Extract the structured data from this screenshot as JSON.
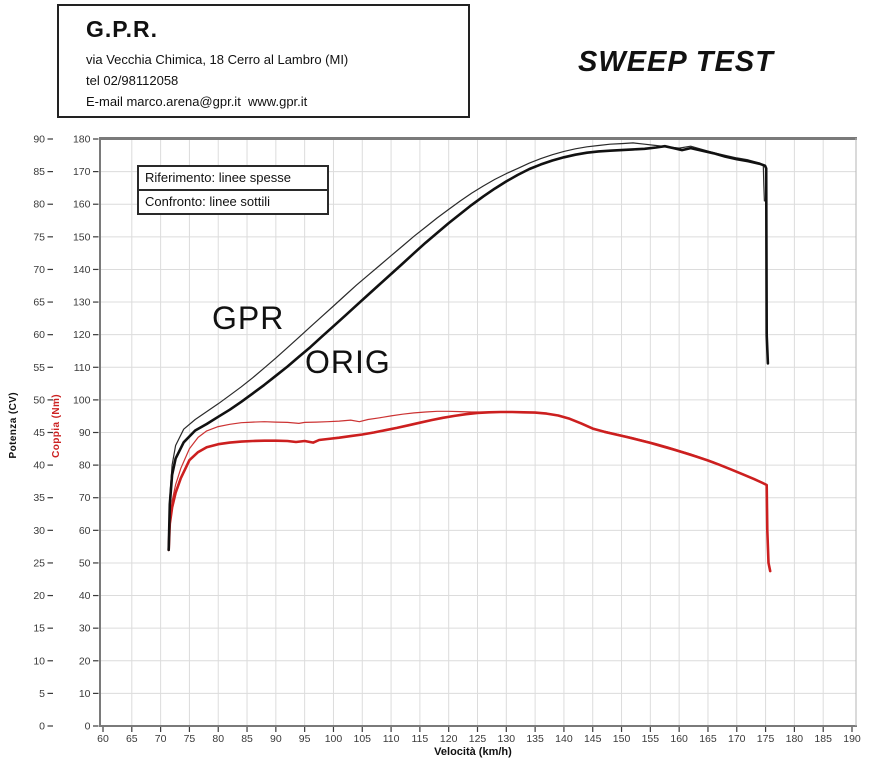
{
  "header": {
    "company": "G.P.R.",
    "address": "via Vecchia Chimica, 18 Cerro al Lambro (MI)",
    "phone": "tel 02/98112058",
    "email_line": "E-mail marco.arena@gpr.it  www.gpr.it"
  },
  "title": "SWEEP TEST",
  "legend": {
    "row1": "Riferimento: linee spesse",
    "row2": "Confronto: linee sottili"
  },
  "annotations": {
    "gpr": "GPR",
    "orig": "ORIG"
  },
  "axes": {
    "x": {
      "label": "Velocità (km/h)",
      "min": 60,
      "max": 190,
      "step": 5
    },
    "y_power": {
      "label": "Potenza (CV)",
      "min": 0,
      "max": 90,
      "step": 5,
      "color": "#1a1a1a"
    },
    "y_torque": {
      "label": "Coppia (Nm)",
      "min": 0,
      "max": 180,
      "step": 10,
      "color": "#cc2222"
    }
  },
  "chart_data": {
    "type": "line",
    "title": "SWEEP TEST",
    "xlabel": "Velocità (km/h)",
    "x_range": [
      60,
      190
    ],
    "power_axis": {
      "label": "Potenza (CV)",
      "range": [
        0,
        90
      ]
    },
    "torque_axis": {
      "label": "Coppia (Nm)",
      "range": [
        0,
        180
      ]
    },
    "grid": true,
    "grid_color": "#dcdcdc",
    "frame_color": "#7a7a7a",
    "tick_color": "#3a3a3a",
    "series": [
      {
        "name": "torque_gpr",
        "legend": "Confronto (linee sottili)",
        "axis": "torque",
        "style": "thin",
        "color": "#cc3333",
        "points": [
          [
            71.4,
            54.5
          ],
          [
            71.6,
            63
          ],
          [
            72,
            69
          ],
          [
            72.6,
            74
          ],
          [
            73.5,
            79
          ],
          [
            75,
            85
          ],
          [
            76.5,
            88.5
          ],
          [
            78,
            90.5
          ],
          [
            80,
            91.8
          ],
          [
            82,
            92.5
          ],
          [
            84,
            93
          ],
          [
            86,
            93.2
          ],
          [
            88,
            93.3
          ],
          [
            90,
            93.2
          ],
          [
            92,
            93.1
          ],
          [
            94,
            92.8
          ],
          [
            95,
            93.1
          ],
          [
            97,
            93.2
          ],
          [
            99,
            93.3
          ],
          [
            101,
            93.5
          ],
          [
            103,
            93.8
          ],
          [
            104.5,
            93.3
          ],
          [
            106,
            94
          ],
          [
            108,
            94.5
          ],
          [
            110,
            95.1
          ],
          [
            112,
            95.6
          ],
          [
            114,
            96
          ],
          [
            116,
            96.3
          ],
          [
            118,
            96.5
          ],
          [
            120,
            96.5
          ],
          [
            122,
            96.4
          ],
          [
            124,
            96.3
          ],
          [
            126,
            96.3
          ],
          [
            128,
            96.3
          ],
          [
            130,
            96.3
          ],
          [
            132,
            96.2
          ],
          [
            134,
            96.1
          ],
          [
            136,
            96
          ],
          [
            138,
            95.6
          ],
          [
            140,
            94.8
          ],
          [
            142,
            93.6
          ],
          [
            144,
            92
          ],
          [
            146,
            90.8
          ],
          [
            148,
            90
          ],
          [
            150,
            89.2
          ],
          [
            152,
            88.4
          ],
          [
            154,
            87.5
          ],
          [
            156,
            86.6
          ],
          [
            158,
            85.6
          ],
          [
            160,
            84.5
          ],
          [
            162,
            83.4
          ],
          [
            164,
            82.2
          ],
          [
            166,
            81
          ],
          [
            168,
            79.5
          ],
          [
            170,
            78
          ],
          [
            172,
            76.5
          ],
          [
            174,
            75
          ],
          [
            174.9,
            74.2
          ]
        ]
      },
      {
        "name": "torque_orig",
        "legend": "Riferimento (linee spesse)",
        "axis": "torque",
        "style": "thick",
        "color": "#cc1f1f",
        "points": [
          [
            71.4,
            54
          ],
          [
            71.6,
            62
          ],
          [
            72,
            67
          ],
          [
            72.6,
            71.5
          ],
          [
            73.5,
            76
          ],
          [
            75,
            81.5
          ],
          [
            76.5,
            84
          ],
          [
            78,
            85.5
          ],
          [
            80,
            86.4
          ],
          [
            82,
            86.9
          ],
          [
            84,
            87.2
          ],
          [
            86,
            87.4
          ],
          [
            88,
            87.5
          ],
          [
            90,
            87.5
          ],
          [
            92,
            87.4
          ],
          [
            93.5,
            87.1
          ],
          [
            95,
            87.4
          ],
          [
            96.5,
            86.9
          ],
          [
            97.5,
            87.7
          ],
          [
            99,
            88
          ],
          [
            101,
            88.4
          ],
          [
            103,
            88.9
          ],
          [
            105,
            89.4
          ],
          [
            107,
            90
          ],
          [
            109,
            90.7
          ],
          [
            111,
            91.4
          ],
          [
            113,
            92.2
          ],
          [
            115,
            93
          ],
          [
            117,
            93.8
          ],
          [
            119,
            94.5
          ],
          [
            121,
            95.1
          ],
          [
            123,
            95.6
          ],
          [
            125,
            96
          ],
          [
            127,
            96.2
          ],
          [
            129,
            96.3
          ],
          [
            131,
            96.3
          ],
          [
            133,
            96.2
          ],
          [
            135,
            96.1
          ],
          [
            137,
            95.8
          ],
          [
            139,
            95.2
          ],
          [
            141,
            94.2
          ],
          [
            143,
            92.8
          ],
          [
            145,
            91.2
          ],
          [
            147,
            90.2
          ],
          [
            149,
            89.4
          ],
          [
            151,
            88.6
          ],
          [
            153,
            87.7
          ],
          [
            155,
            86.8
          ],
          [
            157,
            85.8
          ],
          [
            159,
            84.8
          ],
          [
            161,
            83.7
          ],
          [
            163,
            82.6
          ],
          [
            165,
            81.4
          ],
          [
            167,
            80.1
          ],
          [
            169,
            78.7
          ],
          [
            171,
            77.2
          ],
          [
            173,
            75.7
          ],
          [
            174.5,
            74.5
          ],
          [
            175.2,
            73.9
          ],
          [
            175.3,
            60
          ],
          [
            175.5,
            50
          ],
          [
            175.8,
            47.5
          ]
        ]
      },
      {
        "name": "power_gpr",
        "legend": "Confronto (linee sottili)",
        "axis": "power",
        "style": "thin",
        "color": "#2a2a2a",
        "points": [
          [
            71.4,
            27.5
          ],
          [
            71.6,
            35
          ],
          [
            72,
            40
          ],
          [
            72.6,
            43
          ],
          [
            74,
            45.5
          ],
          [
            76,
            47
          ],
          [
            78,
            48.2
          ],
          [
            80,
            49.4
          ],
          [
            82,
            50.7
          ],
          [
            84,
            52
          ],
          [
            86,
            53.4
          ],
          [
            88,
            54.9
          ],
          [
            90,
            56.4
          ],
          [
            92,
            58
          ],
          [
            94,
            59.6
          ],
          [
            96,
            61.2
          ],
          [
            98,
            62.8
          ],
          [
            100,
            64.4
          ],
          [
            102,
            66
          ],
          [
            104,
            67.6
          ],
          [
            106,
            69.1
          ],
          [
            108,
            70.6
          ],
          [
            110,
            72.1
          ],
          [
            112,
            73.6
          ],
          [
            114,
            75.1
          ],
          [
            116,
            76.5
          ],
          [
            118,
            77.9
          ],
          [
            120,
            79.2
          ],
          [
            122,
            80.5
          ],
          [
            124,
            81.7
          ],
          [
            126,
            82.8
          ],
          [
            128,
            83.8
          ],
          [
            130,
            84.7
          ],
          [
            132,
            85.5
          ],
          [
            134,
            86.3
          ],
          [
            136,
            87
          ],
          [
            138,
            87.6
          ],
          [
            140,
            88.1
          ],
          [
            142,
            88.5
          ],
          [
            144,
            88.8
          ],
          [
            146,
            89
          ],
          [
            148,
            89.2
          ],
          [
            150,
            89.3
          ],
          [
            152,
            89.4
          ],
          [
            154,
            89.2
          ],
          [
            156,
            89
          ],
          [
            158,
            88.8
          ],
          [
            160,
            88.6
          ],
          [
            162,
            88.9
          ],
          [
            164,
            88.4
          ],
          [
            166,
            87.9
          ],
          [
            168,
            87.5
          ],
          [
            170,
            87.1
          ],
          [
            172,
            86.8
          ],
          [
            174,
            86.3
          ],
          [
            174.6,
            86
          ],
          [
            174.7,
            83
          ],
          [
            174.8,
            80.5
          ]
        ]
      },
      {
        "name": "power_orig",
        "legend": "Riferimento (linee spesse)",
        "axis": "power",
        "style": "thick",
        "color": "#111111",
        "points": [
          [
            71.4,
            27
          ],
          [
            71.6,
            34
          ],
          [
            72,
            38.5
          ],
          [
            72.6,
            41
          ],
          [
            74,
            43.5
          ],
          [
            76,
            45.3
          ],
          [
            78,
            46.3
          ],
          [
            80,
            47.4
          ],
          [
            82,
            48.5
          ],
          [
            84,
            49.7
          ],
          [
            86,
            51
          ],
          [
            88,
            52.3
          ],
          [
            90,
            53.7
          ],
          [
            92,
            55.1
          ],
          [
            94,
            56.6
          ],
          [
            96,
            58.1
          ],
          [
            98,
            59.7
          ],
          [
            100,
            61.3
          ],
          [
            102,
            62.9
          ],
          [
            104,
            64.5
          ],
          [
            106,
            66.1
          ],
          [
            108,
            67.7
          ],
          [
            110,
            69.3
          ],
          [
            112,
            70.9
          ],
          [
            114,
            72.5
          ],
          [
            116,
            74.1
          ],
          [
            118,
            75.6
          ],
          [
            120,
            77.1
          ],
          [
            122,
            78.5
          ],
          [
            124,
            79.9
          ],
          [
            126,
            81.2
          ],
          [
            128,
            82.4
          ],
          [
            130,
            83.5
          ],
          [
            132,
            84.5
          ],
          [
            134,
            85.4
          ],
          [
            136,
            86.1
          ],
          [
            138,
            86.7
          ],
          [
            140,
            87.2
          ],
          [
            142,
            87.6
          ],
          [
            144,
            87.9
          ],
          [
            146,
            88.1
          ],
          [
            148,
            88.2
          ],
          [
            150,
            88.3
          ],
          [
            152,
            88.4
          ],
          [
            154,
            88.5
          ],
          [
            156,
            88.7
          ],
          [
            157.5,
            88.9
          ],
          [
            159,
            88.6
          ],
          [
            160.5,
            88.3
          ],
          [
            162,
            88.6
          ],
          [
            164,
            88.2
          ],
          [
            166,
            87.8
          ],
          [
            168,
            87.3
          ],
          [
            170,
            86.9
          ],
          [
            172,
            86.6
          ],
          [
            174,
            86.2
          ],
          [
            174.9,
            85.9
          ],
          [
            175.1,
            85.5
          ],
          [
            175.2,
            60
          ],
          [
            175.4,
            55.6
          ]
        ]
      }
    ]
  }
}
